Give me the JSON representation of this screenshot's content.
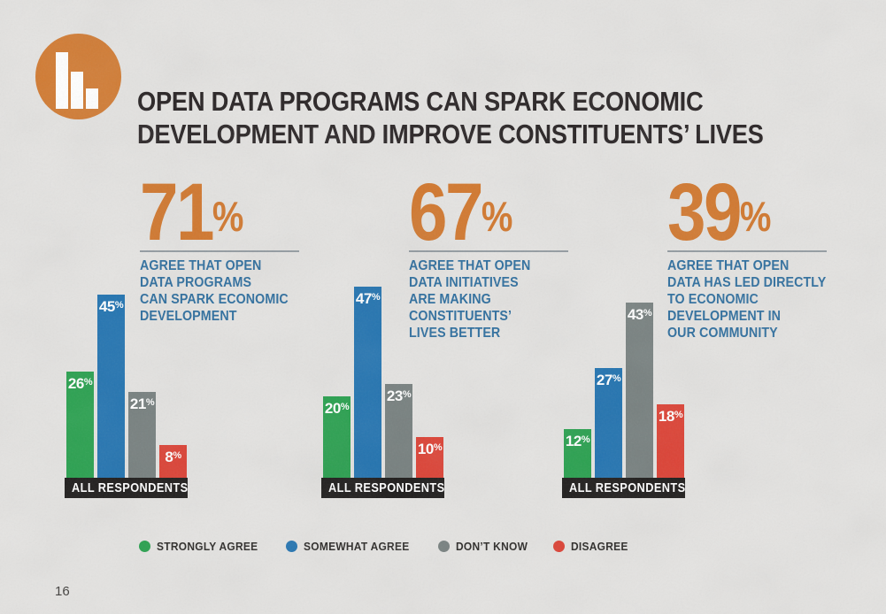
{
  "slide": {
    "title": "OPEN DATA PROGRAMS CAN SPARK ECONOMIC\nDEVELOPMENT AND IMPROVE CONSTITUENTS’ LIVES",
    "page_number": "16"
  },
  "logo": {
    "icon": "bar-chart-icon",
    "background_color": "#d17b33",
    "bar_color": "#ffffff"
  },
  "stats": [
    {
      "value": "71",
      "unit": "%",
      "description": "AGREE THAT OPEN\nDATA PROGRAMS\nCAN SPARK ECONOMIC\nDEVELOPMENT"
    },
    {
      "value": "67",
      "unit": "%",
      "description": "AGREE THAT OPEN\nDATA INITIATIVES\nARE MAKING\nCONSTITUENTS’\nLIVES BETTER"
    },
    {
      "value": "39",
      "unit": "%",
      "description": "AGREE THAT OPEN\nDATA HAS LED DIRECTLY\nTO ECONOMIC\nDEVELOPMENT IN\nOUR COMMUNITY"
    }
  ],
  "chart_data": [
    {
      "type": "bar",
      "headline_stat": "71%",
      "categories": [
        "STRONGLY AGREE",
        "SOMEWHAT AGREE",
        "DON’T KNOW",
        "DISAGREE"
      ],
      "values": [
        26,
        45,
        21,
        8
      ],
      "unit": "%",
      "xlabel": "ALL RESPONDENTS",
      "ylim": [
        0,
        50
      ],
      "grid": false,
      "legend_position": "bottom"
    },
    {
      "type": "bar",
      "headline_stat": "67%",
      "categories": [
        "STRONGLY AGREE",
        "SOMEWHAT AGREE",
        "DON’T KNOW",
        "DISAGREE"
      ],
      "values": [
        20,
        47,
        23,
        10
      ],
      "unit": "%",
      "xlabel": "ALL RESPONDENTS",
      "ylim": [
        0,
        50
      ],
      "grid": false,
      "legend_position": "bottom"
    },
    {
      "type": "bar",
      "headline_stat": "39%",
      "categories": [
        "STRONGLY AGREE",
        "SOMEWHAT AGREE",
        "DON’T KNOW",
        "DISAGREE"
      ],
      "values": [
        12,
        27,
        43,
        18
      ],
      "unit": "%",
      "xlabel": "ALL RESPONDENTS",
      "ylim": [
        0,
        50
      ],
      "grid": false,
      "legend_position": "bottom"
    }
  ],
  "legend": {
    "items": [
      {
        "label": "STRONGLY AGREE",
        "color": "#28a04e"
      },
      {
        "label": "SOMEWHAT AGREE",
        "color": "#2273b0"
      },
      {
        "label": "DON’T KNOW",
        "color": "#77807f"
      },
      {
        "label": "DISAGREE",
        "color": "#dc4134"
      }
    ]
  },
  "colors": {
    "background": "#e4e3e1",
    "accent_orange": "#d1772d",
    "stat_description_blue": "#2e6e9e",
    "title_text": "#272223",
    "axis_bar_background": "#1d1b1a",
    "rule_gray": "#939ba1"
  }
}
